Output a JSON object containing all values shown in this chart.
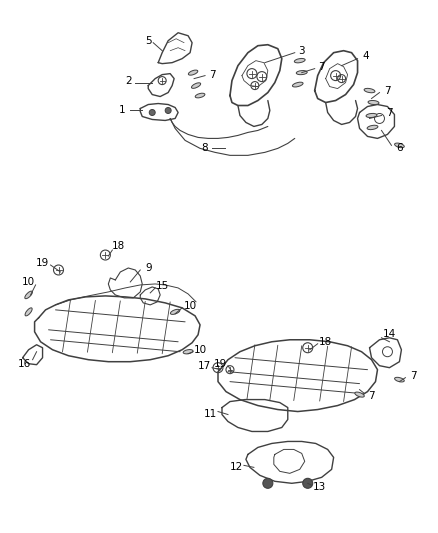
{
  "background_color": "#ffffff",
  "line_color": "#404040",
  "label_color": "#000000",
  "figsize": [
    4.38,
    5.33
  ],
  "dpi": 100,
  "font_size": 7.5
}
